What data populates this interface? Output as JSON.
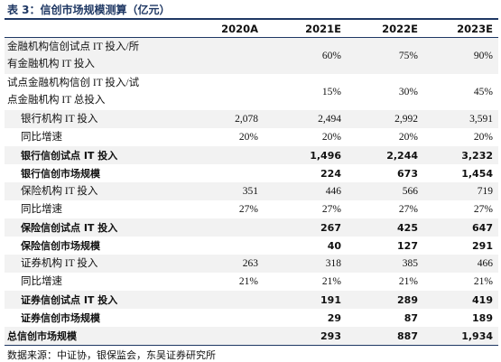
{
  "title": "表 3：信创市场规模测算（亿元）",
  "table": {
    "header": [
      "2020A",
      "2021E",
      "2022E",
      "2023E"
    ],
    "rows": [
      {
        "label": "金融机构信创试点 IT 投入/所有金融机构 IT 投入",
        "bold": false,
        "indent": false,
        "values": [
          null,
          "60%",
          "75%",
          "90%"
        ]
      },
      {
        "label": "试点金融机构信创 IT 投入/试点金融机构 IT 总投入",
        "bold": false,
        "indent": false,
        "values": [
          null,
          "15%",
          "30%",
          "45%"
        ]
      },
      {
        "label": "银行机构 IT 投入",
        "bold": false,
        "indent": true,
        "values": [
          "2,078",
          "2,494",
          "2,992",
          "3,591"
        ]
      },
      {
        "label": "同比增速",
        "bold": false,
        "indent": true,
        "values": [
          "20%",
          "20%",
          "20%",
          "20%"
        ]
      },
      {
        "label": "银行信创试点 IT 投入",
        "bold": true,
        "indent": true,
        "values": [
          null,
          "1,496",
          "2,244",
          "3,232"
        ]
      },
      {
        "label": "银行信创市场规模",
        "bold": true,
        "indent": true,
        "values": [
          null,
          "224",
          "673",
          "1,454"
        ]
      },
      {
        "label": "保险机构 IT 投入",
        "bold": false,
        "indent": true,
        "values": [
          "351",
          "446",
          "566",
          "719"
        ]
      },
      {
        "label": "同比增速",
        "bold": false,
        "indent": true,
        "values": [
          "27%",
          "27%",
          "27%",
          "27%"
        ]
      },
      {
        "label": "保险信创试点 IT 投入",
        "bold": true,
        "indent": true,
        "values": [
          null,
          "267",
          "425",
          "647"
        ]
      },
      {
        "label": "保险信创市场规模",
        "bold": true,
        "indent": true,
        "values": [
          null,
          "40",
          "127",
          "291"
        ]
      },
      {
        "label": "证券机构 IT 投入",
        "bold": false,
        "indent": true,
        "values": [
          "263",
          "318",
          "385",
          "466"
        ]
      },
      {
        "label": "同比增速",
        "bold": false,
        "indent": true,
        "values": [
          "21%",
          "21%",
          "21%",
          "21%"
        ]
      },
      {
        "label": "证券信创试点 IT 投入",
        "bold": true,
        "indent": true,
        "values": [
          null,
          "191",
          "289",
          "419"
        ]
      },
      {
        "label": "证券信创市场规模",
        "bold": true,
        "indent": true,
        "values": [
          null,
          "29",
          "87",
          "189"
        ]
      },
      {
        "label": "总信创市场规模",
        "bold": true,
        "indent": false,
        "values": [
          null,
          "293",
          "887",
          "1,934"
        ]
      }
    ]
  },
  "source": "数据来源：中证协，银保监会，东吴证券研究所"
}
